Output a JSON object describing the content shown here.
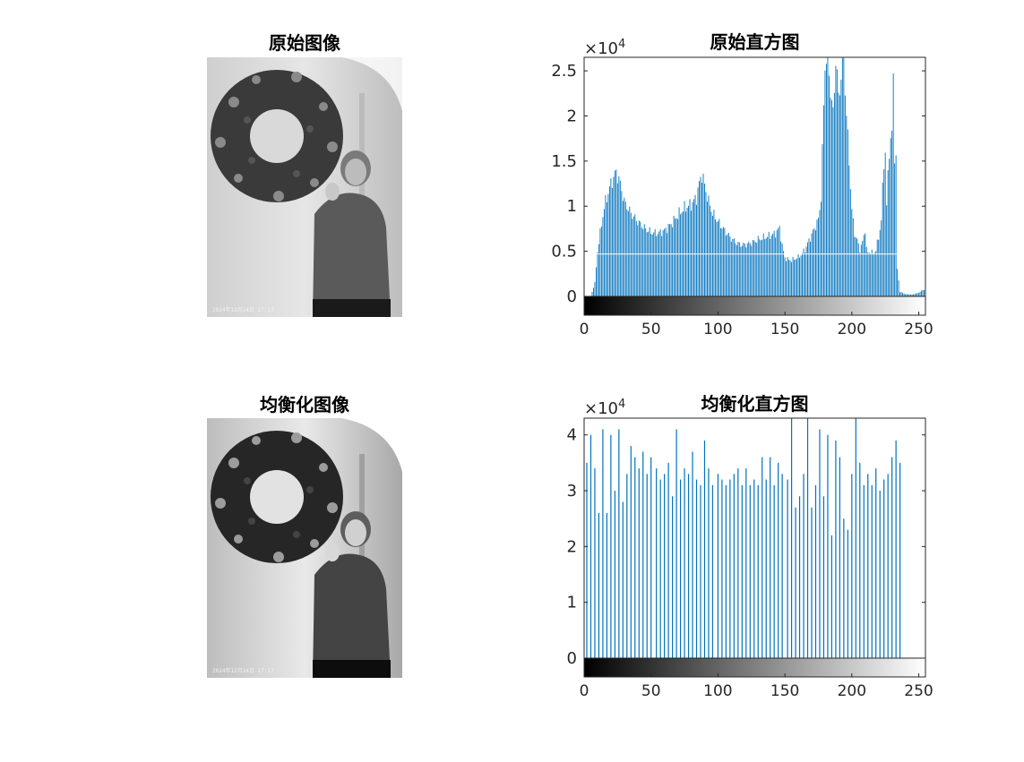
{
  "figure": {
    "panels": {
      "orig_image_title": "原始图像",
      "orig_hist_title": "原始直方图",
      "eq_image_title": "均衡化图像",
      "eq_hist_title": "均衡化直方图"
    },
    "photo_stamp": "2024年12月24日 17:17"
  },
  "chart_data": [
    {
      "type": "bar",
      "title": "原始直方图",
      "xlabel": "",
      "ylabel": "",
      "xlim": [
        0,
        255
      ],
      "ylim": [
        0,
        26500
      ],
      "y_exponent_label": "×10",
      "y_exponent_power": "4",
      "xticks": [
        "0",
        "50",
        "100",
        "150",
        "200",
        "250"
      ],
      "yticks": [
        "0",
        "0.5",
        "1",
        "1.5",
        "2",
        "2.5"
      ],
      "ytick_values": [
        0,
        5000,
        10000,
        15000,
        20000,
        25000
      ],
      "bar_color": "#0072BD",
      "colorbar": "gray",
      "profile_points": [
        [
          0,
          0
        ],
        [
          5,
          0
        ],
        [
          8,
          1500
        ],
        [
          10,
          5000
        ],
        [
          12,
          7000
        ],
        [
          14,
          9000
        ],
        [
          16,
          10500
        ],
        [
          18,
          11500
        ],
        [
          20,
          12500
        ],
        [
          22,
          13200
        ],
        [
          24,
          13800
        ],
        [
          26,
          13000
        ],
        [
          28,
          11800
        ],
        [
          30,
          10500
        ],
        [
          35,
          9200
        ],
        [
          40,
          8300
        ],
        [
          45,
          7600
        ],
        [
          50,
          7100
        ],
        [
          55,
          7000
        ],
        [
          60,
          7300
        ],
        [
          65,
          8000
        ],
        [
          70,
          9000
        ],
        [
          75,
          9800
        ],
        [
          80,
          10200
        ],
        [
          84,
          11000
        ],
        [
          86,
          12500
        ],
        [
          88,
          13600
        ],
        [
          90,
          12300
        ],
        [
          93,
          10500
        ],
        [
          96,
          9200
        ],
        [
          100,
          8300
        ],
        [
          105,
          7300
        ],
        [
          110,
          6400
        ],
        [
          114,
          5900
        ],
        [
          118,
          5700
        ],
        [
          122,
          5800
        ],
        [
          126,
          6000
        ],
        [
          130,
          6300
        ],
        [
          134,
          6500
        ],
        [
          138,
          6700
        ],
        [
          142,
          6900
        ],
        [
          144,
          7200
        ],
        [
          146,
          7600
        ],
        [
          148,
          5600
        ],
        [
          150,
          4300
        ],
        [
          152,
          4100
        ],
        [
          155,
          4000
        ],
        [
          158,
          4200
        ],
        [
          162,
          4600
        ],
        [
          165,
          5200
        ],
        [
          168,
          6200
        ],
        [
          172,
          7500
        ],
        [
          175,
          8500
        ],
        [
          177,
          11000
        ],
        [
          179,
          21000
        ],
        [
          180,
          26000
        ],
        [
          182,
          26500
        ],
        [
          184,
          23000
        ],
        [
          186,
          20000
        ],
        [
          188,
          26500
        ],
        [
          190,
          22000
        ],
        [
          192,
          24500
        ],
        [
          194,
          26500
        ],
        [
          196,
          20000
        ],
        [
          198,
          15000
        ],
        [
          200,
          9500
        ],
        [
          202,
          7000
        ],
        [
          204,
          6200
        ],
        [
          206,
          5200
        ],
        [
          208,
          6000
        ],
        [
          210,
          7500
        ],
        [
          211,
          5200
        ],
        [
          212,
          4800
        ],
        [
          214,
          5000
        ],
        [
          216,
          4700
        ],
        [
          218,
          5200
        ],
        [
          220,
          6500
        ],
        [
          222,
          8500
        ],
        [
          224,
          15000
        ],
        [
          225,
          16000
        ],
        [
          226,
          10000
        ],
        [
          228,
          16500
        ],
        [
          230,
          18000
        ],
        [
          231,
          24000
        ],
        [
          232,
          16000
        ],
        [
          233,
          15000
        ],
        [
          234,
          3000
        ],
        [
          236,
          500
        ],
        [
          240,
          250
        ],
        [
          245,
          200
        ],
        [
          250,
          400
        ],
        [
          253,
          700
        ],
        [
          255,
          800
        ]
      ]
    },
    {
      "type": "bar",
      "title": "均衡化直方图",
      "xlabel": "",
      "ylabel": "",
      "xlim": [
        0,
        255
      ],
      "ylim": [
        0,
        43000
      ],
      "y_exponent_label": "×10",
      "y_exponent_power": "4",
      "xticks": [
        "0",
        "50",
        "100",
        "150",
        "200",
        "250"
      ],
      "yticks": [
        "0",
        "1",
        "2",
        "3",
        "4"
      ],
      "ytick_values": [
        0,
        10000,
        20000,
        30000,
        40000
      ],
      "bar_color": "#0072BD",
      "colorbar": "gray",
      "bars": [
        [
          2,
          35000
        ],
        [
          5,
          40000
        ],
        [
          8,
          34000
        ],
        [
          11,
          26000
        ],
        [
          14,
          41000
        ],
        [
          17,
          26000
        ],
        [
          20,
          40000
        ],
        [
          23,
          30000
        ],
        [
          26,
          41000
        ],
        [
          29,
          28000
        ],
        [
          32,
          33000
        ],
        [
          35,
          38000
        ],
        [
          38,
          36000
        ],
        [
          41,
          34000
        ],
        [
          44,
          37000
        ],
        [
          47,
          33000
        ],
        [
          50,
          36000
        ],
        [
          54,
          34000
        ],
        [
          57,
          32000
        ],
        [
          60,
          33000
        ],
        [
          63,
          35000
        ],
        [
          66,
          29000
        ],
        [
          69,
          41000
        ],
        [
          72,
          32000
        ],
        [
          75,
          34000
        ],
        [
          78,
          33000
        ],
        [
          81,
          37000
        ],
        [
          84,
          32000
        ],
        [
          87,
          31000
        ],
        [
          90,
          39000
        ],
        [
          93,
          34000
        ],
        [
          96,
          31000
        ],
        [
          100,
          33000
        ],
        [
          103,
          32000
        ],
        [
          106,
          31000
        ],
        [
          109,
          32000
        ],
        [
          112,
          33000
        ],
        [
          115,
          34000
        ],
        [
          118,
          31000
        ],
        [
          121,
          34000
        ],
        [
          124,
          31000
        ],
        [
          127,
          32000
        ],
        [
          130,
          31000
        ],
        [
          133,
          36000
        ],
        [
          136,
          32000
        ],
        [
          139,
          36000
        ],
        [
          142,
          31000
        ],
        [
          145,
          35000
        ],
        [
          148,
          33000
        ],
        [
          152,
          32000
        ],
        [
          155,
          43000
        ],
        [
          158,
          27000
        ],
        [
          161,
          29000
        ],
        [
          164,
          33000
        ],
        [
          167,
          43000
        ],
        [
          170,
          27000
        ],
        [
          173,
          31000
        ],
        [
          176,
          41000
        ],
        [
          179,
          29000
        ],
        [
          182,
          40000
        ],
        [
          185,
          22000
        ],
        [
          188,
          39000
        ],
        [
          191,
          36000
        ],
        [
          194,
          25000
        ],
        [
          197,
          23000
        ],
        [
          200,
          33000
        ],
        [
          203,
          43000
        ],
        [
          206,
          35000
        ],
        [
          209,
          31000
        ],
        [
          212,
          33000
        ],
        [
          215,
          31000
        ],
        [
          218,
          34000
        ],
        [
          221,
          30000
        ],
        [
          224,
          32000
        ],
        [
          227,
          33000
        ],
        [
          230,
          36000
        ],
        [
          233,
          39000
        ],
        [
          236,
          35000
        ]
      ]
    }
  ]
}
